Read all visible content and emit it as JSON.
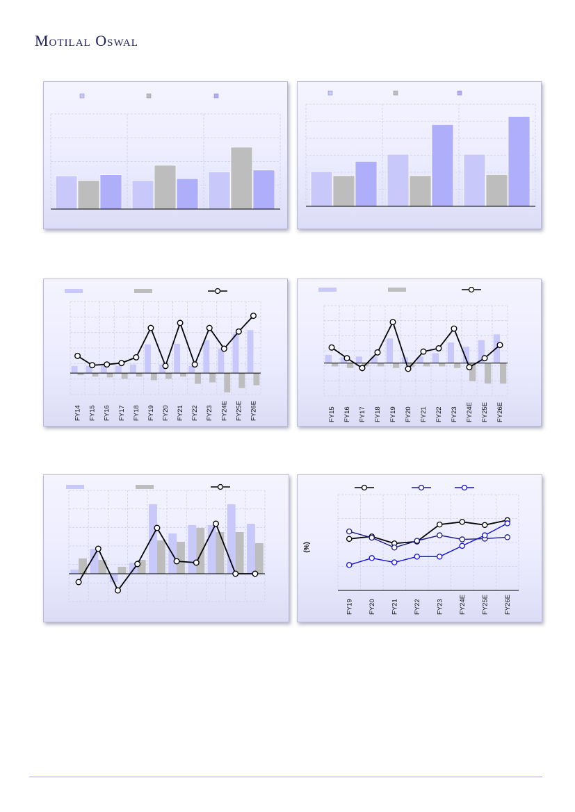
{
  "header": {
    "brand": "Motilal Oswal"
  },
  "colors": {
    "lavender": "#c8c8fb",
    "grey": "#bdbdbd",
    "blue": "#aeaefa",
    "navy": "#1a1a80",
    "bright_blue": "#1010e0",
    "black": "#000000"
  },
  "chart_data": [
    {
      "id": "chart1",
      "type": "bar",
      "grid": true,
      "ylim": [
        0,
        100
      ],
      "legend": [
        "",
        "",
        ""
      ],
      "categories": [
        "",
        "",
        ""
      ],
      "series": [
        {
          "values": [
            35,
            30,
            39
          ]
        },
        {
          "values": [
            30,
            46,
            65
          ]
        },
        {
          "values": [
            36,
            32,
            41
          ]
        }
      ]
    },
    {
      "id": "chart2",
      "type": "bar",
      "grid": true,
      "ylim": [
        0,
        100
      ],
      "legend": [
        "",
        "",
        ""
      ],
      "categories": [
        "",
        "",
        ""
      ],
      "series": [
        {
          "values": [
            34,
            51,
            51
          ]
        },
        {
          "values": [
            30,
            30,
            31
          ]
        },
        {
          "values": [
            44,
            80,
            88
          ]
        }
      ]
    },
    {
      "id": "chart3",
      "type": "bar+line",
      "grid": true,
      "ylim": [
        -30,
        100
      ],
      "categories": [
        "FY14",
        "FY15",
        "FY16",
        "FY17",
        "FY18",
        "FY19",
        "FY20",
        "FY21",
        "FY22",
        "FY23",
        "FY24E",
        "FY25E",
        "FY26E"
      ],
      "series": [
        {
          "type": "bar",
          "values": [
            10,
            10,
            10,
            10,
            12,
            40,
            12,
            41,
            10,
            46,
            34,
            55,
            60
          ]
        },
        {
          "type": "bar",
          "values": [
            -3,
            -5,
            -6,
            -8,
            -5,
            -10,
            -8,
            -5,
            -15,
            -13,
            -27,
            -21,
            -17
          ]
        },
        {
          "type": "line",
          "values": [
            24,
            11,
            12,
            14,
            22,
            63,
            10,
            70,
            12,
            63,
            34,
            58,
            80
          ]
        }
      ]
    },
    {
      "id": "chart4",
      "type": "bar+line",
      "grid": true,
      "ylim": [
        -40,
        70
      ],
      "categories": [
        "FY15",
        "FY16",
        "FY17",
        "FY18",
        "FY19",
        "FY20",
        "FY21",
        "FY22",
        "FY23",
        "FY24E",
        "FY25E",
        "FY26E"
      ],
      "series": [
        {
          "type": "bar",
          "values": [
            10,
            7,
            8,
            8,
            30,
            7,
            8,
            12,
            25,
            20,
            28,
            35
          ]
        },
        {
          "type": "bar",
          "values": [
            -4,
            -6,
            -4,
            -4,
            -6,
            -5,
            -4,
            -4,
            -6,
            -22,
            -25,
            -25
          ]
        },
        {
          "type": "line",
          "values": [
            19,
            6,
            -6,
            13,
            50,
            -7,
            14,
            18,
            42,
            -5,
            6,
            22
          ]
        }
      ]
    },
    {
      "id": "chart5",
      "type": "bar+line",
      "grid": true,
      "ylim": [
        -20,
        60
      ],
      "categories": [
        "",
        "",
        "",
        "",
        "",
        "",
        "",
        "",
        "",
        ""
      ],
      "series": [
        {
          "type": "bar",
          "values": [
            3,
            18,
            -6,
            8,
            50,
            29,
            35,
            35,
            50,
            36
          ]
        },
        {
          "type": "bar",
          "values": [
            11,
            10,
            5,
            10,
            24,
            23,
            33,
            30,
            30,
            22
          ]
        },
        {
          "type": "line",
          "values": [
            -6,
            18,
            -12,
            7,
            33,
            9,
            8,
            36,
            0,
            0
          ]
        }
      ]
    },
    {
      "id": "chart6",
      "type": "line",
      "grid": true,
      "ylim": [
        0,
        40
      ],
      "ylabel": "(%)",
      "categories": [
        "FY19",
        "FY20",
        "FY21",
        "FY22",
        "FY23",
        "FY24E",
        "FY25E",
        "FY26E"
      ],
      "series": [
        {
          "values": [
            21.5,
            22.5,
            19.6,
            20.4,
            27.5,
            28.6,
            27.3,
            29.3
          ]
        },
        {
          "values": [
            24.6,
            22.0,
            17.9,
            20.7,
            23.0,
            21.3,
            21.6,
            22.2
          ]
        },
        {
          "values": [
            10.6,
            13.5,
            11.7,
            14.1,
            14.1,
            18.6,
            23.0,
            28.0
          ]
        }
      ]
    }
  ]
}
